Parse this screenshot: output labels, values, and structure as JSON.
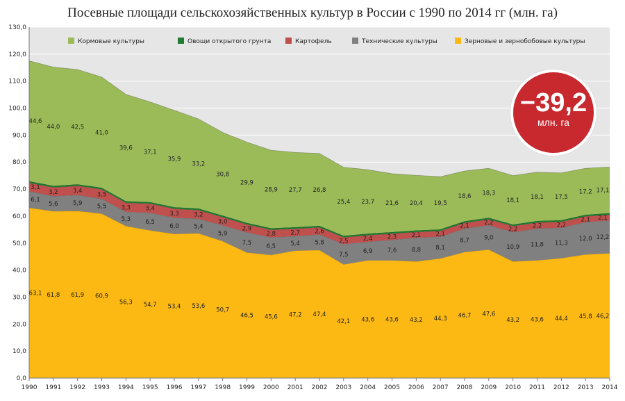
{
  "title": "Посевные площади сельскохозяйственных культур в России с 1990 по 2014 гг (млн. га)",
  "badge": {
    "value": "−39,2",
    "unit": "млн. га",
    "color": "#c8292f"
  },
  "chart_data": {
    "type": "area",
    "stacked": true,
    "title": "Посевные площади сельскохозяйственных культур в России с 1990 по 2014 гг (млн. га)",
    "x": [
      "1990",
      "1991",
      "1992",
      "1993",
      "1994",
      "1995",
      "1996",
      "1997",
      "1998",
      "1999",
      "2000",
      "2001",
      "2002",
      "2003",
      "2004",
      "2005",
      "2006",
      "2007",
      "2008",
      "2009",
      "2010",
      "2011",
      "2012",
      "2013",
      "2014"
    ],
    "ylim": [
      0,
      130
    ],
    "yticks": [
      "0,0",
      "10,0",
      "20,0",
      "30,0",
      "40,0",
      "50,0",
      "60,0",
      "70,0",
      "80,0",
      "90,0",
      "100,0",
      "110,0",
      "120,0",
      "130,0"
    ],
    "grid": true,
    "legend_position": "top",
    "series": [
      {
        "name": "Зерновые и зернобобовые культуры",
        "color": "#fdb913",
        "values": [
          63.1,
          61.8,
          61.9,
          60.9,
          56.3,
          54.7,
          53.4,
          53.6,
          50.7,
          46.5,
          45.6,
          47.2,
          47.4,
          42.1,
          43.6,
          43.6,
          43.2,
          44.3,
          46.7,
          47.6,
          43.2,
          43.6,
          44.4,
          45.8,
          46.2
        ],
        "labels": [
          "63,1",
          "61,8",
          "61,9",
          "60,9",
          "56,3",
          "54,7",
          "53,4",
          "53,6",
          "50,7",
          "46,5",
          "45,6",
          "47,2",
          "47,4",
          "42,1",
          "43,6",
          "43,6",
          "43,2",
          "44,3",
          "46,7",
          "47,6",
          "43,2",
          "43,6",
          "44,4",
          "45,8",
          "46,2"
        ]
      },
      {
        "name": "Технические культуры",
        "color": "#808080",
        "values": [
          6.1,
          5.6,
          5.9,
          5.5,
          5.3,
          6.5,
          6.0,
          5.4,
          5.9,
          7.5,
          6.5,
          5.4,
          5.8,
          7.5,
          6.9,
          7.6,
          8.8,
          8.1,
          8.7,
          9.0,
          10.9,
          11.8,
          11.3,
          12.0,
          12.2
        ],
        "labels": [
          "6,1",
          "5,6",
          "5,9",
          "5,5",
          "5,3",
          "6,5",
          "6,0",
          "5,4",
          "5,9",
          "7,5",
          "6,5",
          "5,4",
          "5,8",
          "7,5",
          "6,9",
          "7,6",
          "8,8",
          "8,1",
          "8,7",
          "9,0",
          "10,9",
          "11,8",
          "11,3",
          "12,0",
          "12,2"
        ]
      },
      {
        "name": "Картофель",
        "color": "#c0504d",
        "values": [
          3.1,
          3.2,
          3.4,
          3.5,
          3.3,
          3.4,
          3.3,
          3.2,
          3.0,
          2.9,
          2.8,
          2.7,
          2.6,
          2.5,
          2.4,
          2.3,
          2.1,
          2.1,
          2.1,
          2.2,
          2.2,
          2.2,
          2.2,
          2.1,
          2.1
        ],
        "labels": [
          "3,1",
          "3,2",
          "3,4",
          "3,5",
          "3,3",
          "3,4",
          "3,3",
          "3,2",
          "3,0",
          "2,9",
          "2,8",
          "2,7",
          "2,6",
          "2,5",
          "2,4",
          "2,3",
          "2,1",
          "2,1",
          "2,1",
          "2,2",
          "2,2",
          "2,2",
          "2,2",
          "2,1",
          "2,1"
        ]
      },
      {
        "name": "Овощи открытого грунта",
        "color": "#1e7b2f",
        "values": [
          0.6,
          0.6,
          0.6,
          0.6,
          0.6,
          0.6,
          0.6,
          0.6,
          0.6,
          0.6,
          0.6,
          0.6,
          0.6,
          0.6,
          0.6,
          0.6,
          0.6,
          0.6,
          0.6,
          0.6,
          0.6,
          0.6,
          0.6,
          0.6,
          0.6
        ],
        "labels": []
      },
      {
        "name": "Кормовые культуры",
        "color": "#9bbb59",
        "values": [
          44.6,
          44.0,
          42.5,
          41.0,
          39.6,
          37.1,
          35.9,
          33.2,
          30.8,
          29.9,
          28.9,
          27.7,
          26.8,
          25.4,
          23.7,
          21.6,
          20.4,
          19.5,
          18.6,
          18.3,
          18.1,
          18.1,
          17.5,
          17.2,
          17.1
        ],
        "labels": [
          "44,6",
          "44,0",
          "42,5",
          "41,0",
          "39,6",
          "37,1",
          "35,9",
          "33,2",
          "30,8",
          "29,9",
          "28,9",
          "27,7",
          "26,8",
          "25,4",
          "23,7",
          "21,6",
          "20,4",
          "19,5",
          "18,6",
          "18,3",
          "18,1",
          "18,1",
          "17,5",
          "17,2",
          "17,1"
        ]
      }
    ],
    "legend_order": [
      "Кормовые культуры",
      "Овощи открытого грунта",
      "Картофель",
      "Технические культуры",
      "Зерновые и зернобобовые культуры"
    ]
  }
}
